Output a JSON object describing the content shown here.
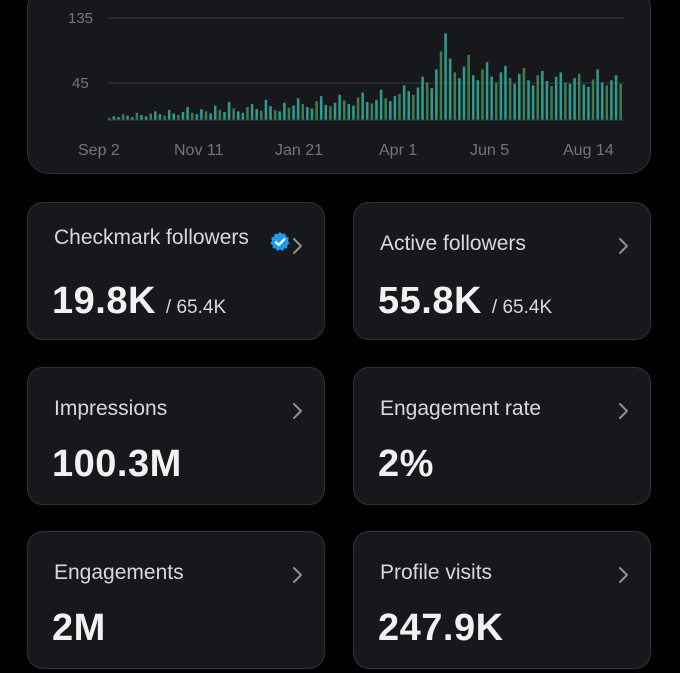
{
  "chart": {
    "y_ticks": [
      "135",
      "45"
    ],
    "x_labels": [
      "Sep 2",
      "Nov 11",
      "Jan 21",
      "Apr 1",
      "Jun 5",
      "Aug 14"
    ],
    "colors": {
      "bars_primary": "#2a9d8f",
      "bars_secondary": "#3f7d4f"
    }
  },
  "chart_data": {
    "type": "bar",
    "ylim": [
      0,
      140
    ],
    "y_ticks": [
      45,
      135
    ],
    "x_tick_labels": [
      "Sep 2",
      "Nov 11",
      "Jan 21",
      "Apr 1",
      "Jun 5",
      "Aug 14"
    ],
    "grid": true,
    "series": [
      {
        "values": [
          3,
          5,
          4,
          8,
          6,
          4,
          10,
          7,
          5,
          9,
          12,
          8,
          6,
          14,
          9,
          7,
          11,
          18,
          10,
          8,
          15,
          12,
          9,
          20,
          14,
          11,
          25,
          16,
          12,
          10,
          18,
          22,
          15,
          13,
          28,
          19,
          14,
          12,
          24,
          17,
          20,
          30,
          22,
          18,
          16,
          26,
          33,
          21,
          19,
          24,
          35,
          27,
          22,
          20,
          31,
          38,
          25,
          23,
          28,
          42,
          30,
          26,
          33,
          36,
          48,
          40,
          35,
          45,
          60,
          52,
          44,
          70,
          95,
          120,
          85,
          66,
          58,
          74,
          90,
          62,
          55,
          70,
          80,
          60,
          52,
          66,
          75,
          58,
          50,
          64,
          72,
          55,
          48,
          62,
          68,
          54,
          47,
          60,
          66,
          52,
          50,
          58,
          64,
          49,
          46,
          56,
          70,
          52,
          48,
          55,
          62,
          50
        ]
      }
    ]
  },
  "cards": [
    {
      "title": "Checkmark followers",
      "value": "19.8K",
      "total": "/ 65.4K",
      "verified": true
    },
    {
      "title": "Active followers",
      "value": "55.8K",
      "total": "/ 65.4K",
      "verified": false
    },
    {
      "title": "Impressions",
      "value": "100.3M",
      "total": "",
      "verified": false
    },
    {
      "title": "Engagement rate",
      "value": "2%",
      "total": "",
      "verified": false
    },
    {
      "title": "Engagements",
      "value": "2M",
      "total": "",
      "verified": false
    },
    {
      "title": "Profile visits",
      "value": "247.9K",
      "total": "",
      "verified": false
    }
  ],
  "icons": {
    "verified": "verified-badge-icon",
    "chevron": "chevron-right-icon",
    "verified_color": "#1d9bf0"
  }
}
